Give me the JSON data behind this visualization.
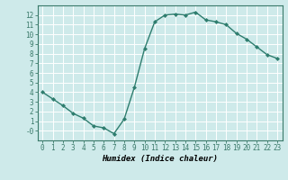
{
  "x": [
    0,
    1,
    2,
    3,
    4,
    5,
    6,
    7,
    8,
    9,
    10,
    11,
    12,
    13,
    14,
    15,
    16,
    17,
    18,
    19,
    20,
    21,
    22,
    23
  ],
  "y": [
    4,
    3.3,
    2.6,
    1.8,
    1.3,
    0.5,
    0.3,
    -0.3,
    1.2,
    4.5,
    8.5,
    11.3,
    12.0,
    12.1,
    12.0,
    12.3,
    11.5,
    11.3,
    11.0,
    10.1,
    9.5,
    8.7,
    7.9,
    7.5
  ],
  "line_color": "#2e7d6e",
  "marker": "D",
  "markersize": 2,
  "linewidth": 1.0,
  "xlabel": "Humidex (Indice chaleur)",
  "xlim": [
    -0.5,
    23.5
  ],
  "ylim": [
    -1,
    13
  ],
  "yticks": [
    0,
    1,
    2,
    3,
    4,
    5,
    6,
    7,
    8,
    9,
    10,
    11,
    12
  ],
  "ytick_labels": [
    "-0",
    "1",
    "2",
    "3",
    "4",
    "5",
    "6",
    "7",
    "8",
    "9",
    "10",
    "11",
    "12"
  ],
  "xticks": [
    0,
    1,
    2,
    3,
    4,
    5,
    6,
    7,
    8,
    9,
    10,
    11,
    12,
    13,
    14,
    15,
    16,
    17,
    18,
    19,
    20,
    21,
    22,
    23
  ],
  "xtick_labels": [
    "0",
    "1",
    "2",
    "3",
    "4",
    "5",
    "6",
    "7",
    "8",
    "9",
    "10",
    "11",
    "12",
    "13",
    "14",
    "15",
    "16",
    "17",
    "18",
    "19",
    "20",
    "21",
    "22",
    "23"
  ],
  "bg_color": "#ceeaea",
  "grid_color": "#ffffff",
  "label_fontsize": 6.5,
  "tick_fontsize": 5.5
}
